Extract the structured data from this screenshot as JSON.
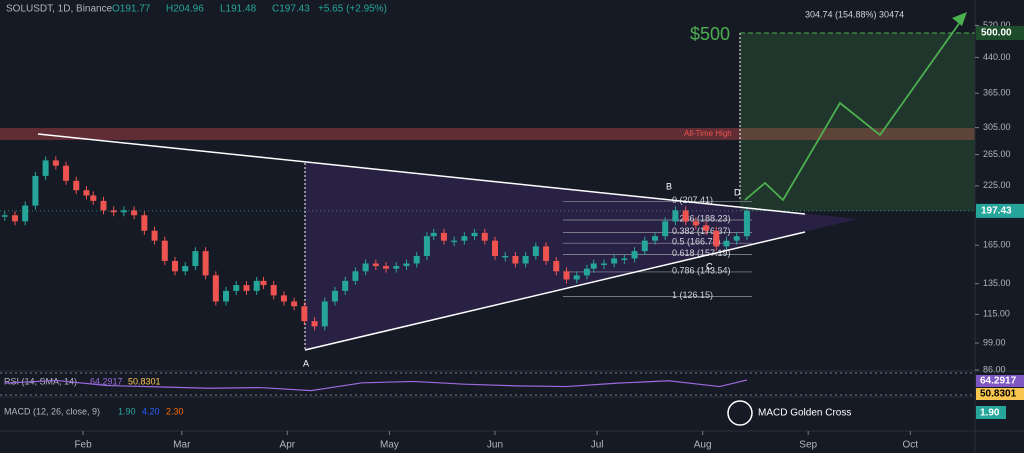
{
  "header": {
    "symbol": "SOLUSDT, 1D, Binance",
    "open": "O191.77",
    "high": "H204.96",
    "low": "L191.48",
    "close": "C197.43",
    "change": "+5.65 (+2.95%)"
  },
  "chart_data": {
    "type": "candlestick",
    "log_scale": true,
    "x": [
      9,
      12,
      15,
      18,
      21,
      24,
      27,
      30,
      33,
      35,
      38,
      41,
      44,
      47,
      50,
      53,
      56,
      59,
      62,
      65,
      68,
      71,
      74,
      77,
      80,
      83,
      85,
      88,
      91,
      94,
      97,
      100,
      103,
      106,
      109,
      112,
      115,
      118,
      121,
      124,
      127,
      130,
      133,
      135,
      138,
      141,
      144,
      147,
      150,
      153,
      156,
      159,
      162,
      165,
      168,
      171,
      174,
      177,
      180,
      182,
      185,
      188,
      191,
      194,
      197,
      200,
      203,
      206,
      209,
      212,
      215,
      218,
      221,
      224,
      227
    ],
    "xlim": [
      7.6,
      294
    ],
    "xticks": [
      {
        "value": 32,
        "label": "Feb"
      },
      {
        "value": 61,
        "label": "Mar"
      },
      {
        "value": 92,
        "label": "Apr"
      },
      {
        "value": 122,
        "label": "May"
      },
      {
        "value": 153,
        "label": "Jun"
      },
      {
        "value": 183,
        "label": "Jul"
      },
      {
        "value": 214,
        "label": "Aug"
      },
      {
        "value": 245,
        "label": "Sep"
      },
      {
        "value": 275,
        "label": "Oct"
      }
    ],
    "ylim": [
      86,
      594
    ],
    "yticks": [
      {
        "value": 86,
        "label": "86.00"
      },
      {
        "value": 99,
        "label": "99.00"
      },
      {
        "value": 115,
        "label": "115.00"
      },
      {
        "value": 135,
        "label": "135.00"
      },
      {
        "value": 165,
        "label": "165.00"
      },
      {
        "value": 225,
        "label": "225.00"
      },
      {
        "value": 265,
        "label": "265.00"
      },
      {
        "value": 305,
        "label": "305.00"
      },
      {
        "value": 365,
        "label": "365.00"
      },
      {
        "value": 440,
        "label": "440.00"
      },
      {
        "value": 520,
        "label": "520.00"
      }
    ],
    "series": [
      {
        "up_color": "#26a69a",
        "down_color": "#ef5350",
        "values": [
          193,
          187,
          203,
          237,
          257,
          250,
          231,
          220,
          214,
          208,
          198,
          196,
          198,
          193,
          178,
          169,
          152,
          144,
          148,
          160,
          141,
          123,
          130,
          134,
          130,
          137,
          134,
          127,
          123,
          120,
          111,
          108,
          123,
          130,
          137,
          144,
          150,
          148,
          146,
          148,
          150,
          156,
          173,
          176,
          169,
          169,
          173,
          176,
          169,
          156,
          156,
          150,
          156,
          164,
          152,
          144,
          138,
          141,
          146,
          150,
          150,
          154,
          154,
          160,
          169,
          173,
          187,
          198,
          187,
          183,
          178,
          164,
          169,
          173,
          197.43
        ]
      }
    ],
    "price_badges": [
      {
        "value": 500,
        "label": "500.00",
        "color": "#1e4d2b"
      },
      {
        "value": 197.43,
        "label": "197.43",
        "color": "#26a69a"
      }
    ],
    "target": {
      "label": "$500",
      "value": 500,
      "color": "#4caf50"
    },
    "measure": "304.74 (154.88%) 30474",
    "ath": "All-Time High",
    "fib": [
      {
        "label": "0 (207.41)",
        "price": 207.41
      },
      {
        "label": "0.236 (188.23)",
        "price": 188.23
      },
      {
        "label": "0.382 (176.37)",
        "price": 176.37
      },
      {
        "label": "0.5 (166.78)",
        "price": 166.78
      },
      {
        "label": "0.618 (157.19)",
        "price": 157.19
      },
      {
        "label": "0.786 (143.54)",
        "price": 143.54
      },
      {
        "label": "1 (126.15)",
        "price": 126.15
      }
    ],
    "points": [
      "A",
      "B",
      "C",
      "D"
    ],
    "rsi": {
      "label": "RSI (14, SMA, 14)",
      "ylim": [
        20,
        85
      ],
      "color": "#9c6ade",
      "x": [
        9,
        24,
        39,
        54,
        69,
        84,
        99,
        114,
        129,
        144,
        159,
        174,
        189,
        204,
        219,
        227
      ],
      "values": [
        55,
        63,
        48,
        44,
        40,
        42,
        33,
        56,
        60,
        52,
        47,
        45,
        55,
        62,
        45,
        64.2917
      ],
      "badges": [
        {
          "value": 64.2917,
          "color": "#7e57c2"
        },
        {
          "value": 50.8301,
          "color": "#f9c74f"
        }
      ]
    },
    "macd": {
      "label": "MACD (12, 26, close, 9)",
      "values": [
        1.9,
        4.2,
        2.3
      ],
      "value_labels": [
        "1.90",
        "4.20",
        "2.30"
      ],
      "annotation": "MACD Golden Cross",
      "badge_color": "#26a69a"
    }
  }
}
